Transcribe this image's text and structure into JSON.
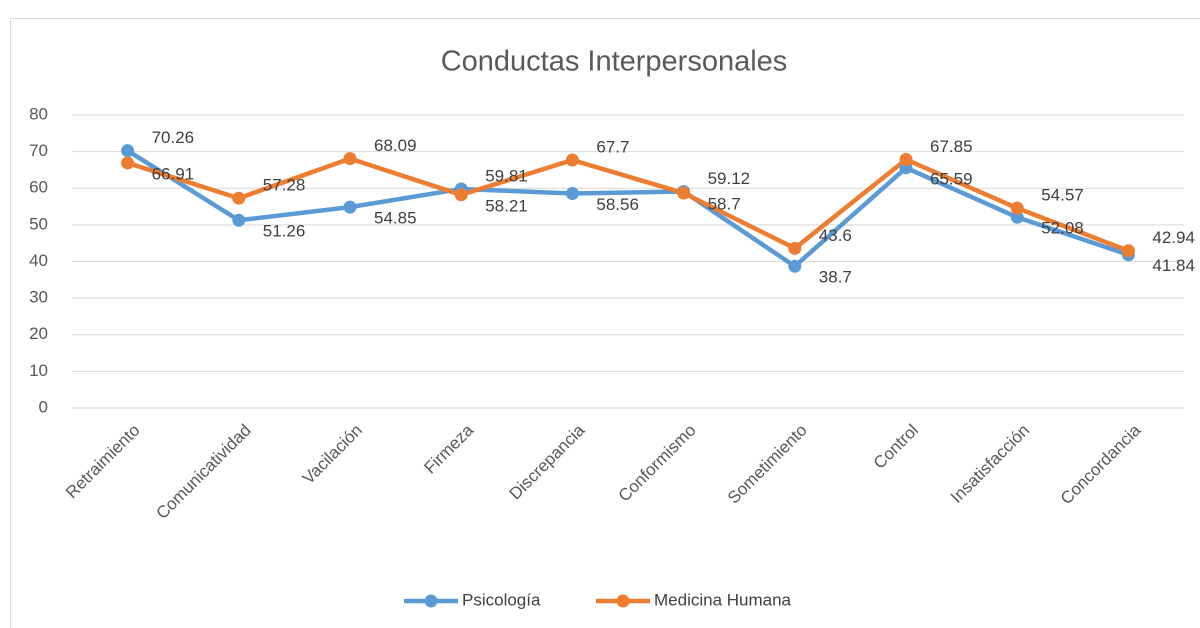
{
  "chart_data": {
    "type": "line",
    "title": "Conductas Interpersonales",
    "categories": [
      "Retraimiento",
      "Comunicatividad",
      "Vacilación",
      "Firmeza",
      "Discrepancia",
      "Conformismo",
      "Sometimiento",
      "Control",
      "Insatisfacción",
      "Concordancia"
    ],
    "series": [
      {
        "name": "Psicología",
        "color": "#5b9bd5",
        "values": [
          70.26,
          51.26,
          54.85,
          59.81,
          58.56,
          59.12,
          38.7,
          65.59,
          52.08,
          41.84
        ]
      },
      {
        "name": "Medicina Humana",
        "color": "#ed7d31",
        "values": [
          66.91,
          57.28,
          68.09,
          58.21,
          67.7,
          58.7,
          43.6,
          67.85,
          54.57,
          42.94
        ]
      }
    ],
    "ylim": [
      0,
      80
    ],
    "yticks": [
      0,
      10,
      20,
      30,
      40,
      50,
      60,
      70,
      80
    ],
    "grid": true,
    "legend": "bottom"
  }
}
